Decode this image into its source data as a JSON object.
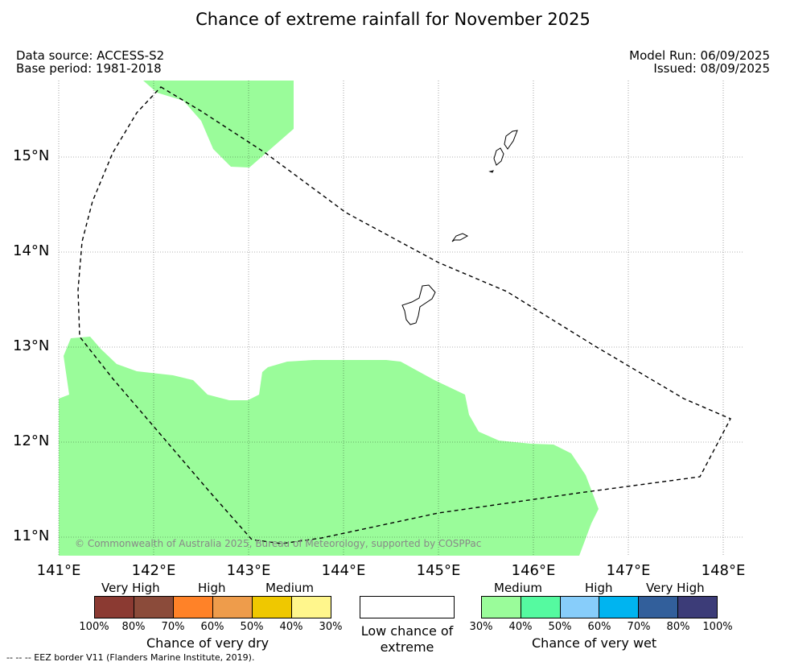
{
  "title": "Chance of extreme rainfall for November 2025",
  "meta": {
    "data_source": "Data source: ACCESS-S2",
    "base_period": "Base period: 1981-2018",
    "model_run": "Model Run: 06/09/2025",
    "issued": "Issued: 08/09/2025"
  },
  "map": {
    "lat_labels": [
      "15°N",
      "14°N",
      "13°N",
      "12°N",
      "11°N"
    ],
    "lon_labels": [
      "141°E",
      "142°E",
      "143°E",
      "144°E",
      "145°E",
      "146°E",
      "147°E",
      "148°E"
    ],
    "wet_medium_color": "#9afc9a",
    "copyright": "© Commonwealth of Australia 2025, Bureau of Meteorology, supported by COSPPac"
  },
  "legend": {
    "dry": {
      "headings": [
        "Very High",
        "High",
        "Medium"
      ],
      "colors": [
        "#8b3a32",
        "#8b4b3a",
        "#ff8228",
        "#ee9c4b",
        "#efc800",
        "#fff68c"
      ],
      "ticks": [
        "100%",
        "80%",
        "70%",
        "60%",
        "50%",
        "40%",
        "30%"
      ],
      "caption": "Chance of very dry"
    },
    "low": {
      "caption": "Low chance of extreme"
    },
    "wet": {
      "headings": [
        "Medium",
        "High",
        "Very High"
      ],
      "colors": [
        "#9afc9a",
        "#55faa0",
        "#87cdfa",
        "#00b4f0",
        "#325f9b",
        "#3c3c78"
      ],
      "ticks": [
        "30%",
        "40%",
        "50%",
        "60%",
        "70%",
        "80%",
        "100%"
      ],
      "caption": "Chance of very wet"
    }
  },
  "eez_note": "--  --  -- EEZ border V11 (Flanders Marine Institute, 2019)."
}
